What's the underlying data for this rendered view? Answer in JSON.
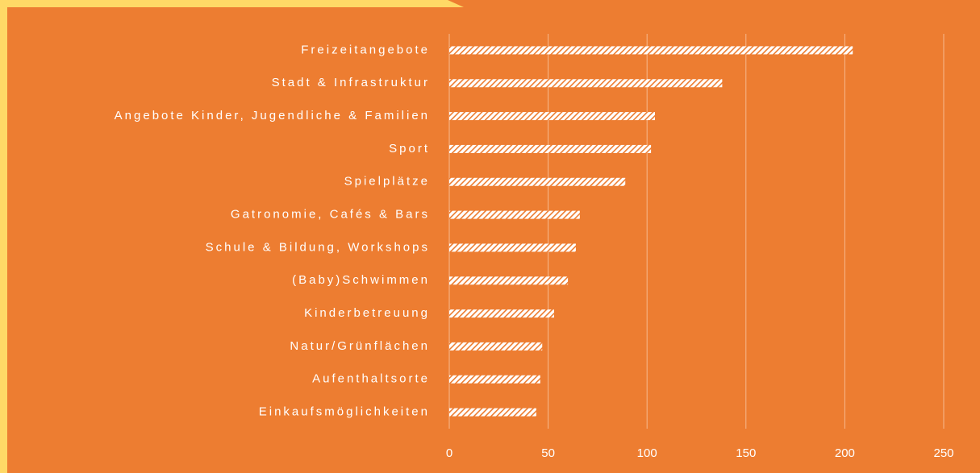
{
  "chart_data": {
    "type": "bar",
    "orientation": "horizontal",
    "categories": [
      "Freizeitangebote",
      "Stadt & Infrastruktur",
      "Angebote Kinder, Jugendliche & Familien",
      "Sport",
      "Spielplätze",
      "Gatronomie, Cafés & Bars",
      "Schule & Bildung, Workshops",
      "(Baby)Schwimmen",
      "Kinderbetreuung",
      "Natur/Grünflächen",
      "Aufenthaltsorte",
      "Einkaufsmöglichkeiten"
    ],
    "values": [
      204,
      138,
      104,
      102,
      89,
      66,
      64,
      60,
      53,
      47,
      46,
      44
    ],
    "color": "#ffffff",
    "xlim": [
      0,
      250
    ],
    "xticks": [
      0,
      50,
      100,
      150,
      200,
      250
    ],
    "grid": true
  }
}
